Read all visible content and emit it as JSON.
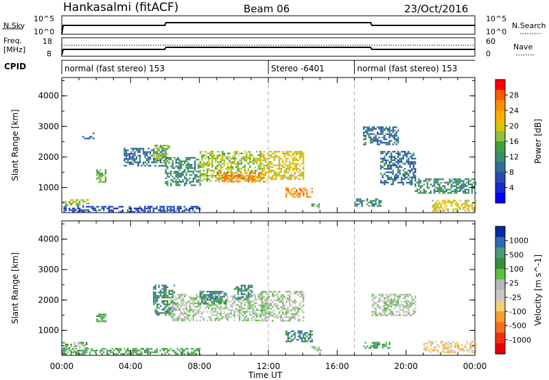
{
  "header": {
    "station": "Hankasalmi (fitACF)",
    "beam": "Beam 06",
    "date": "23/Oct/2016"
  },
  "top_panels": {
    "nsky_label": "N.Sky",
    "nsky_ticks": [
      "10^5",
      "10^0"
    ],
    "nsearch_label": "N.Search",
    "nsearch_ticks": [
      "10^5",
      "10^0"
    ],
    "freq_label_1": "Freq.",
    "freq_label_2": "[MHz]",
    "freq_ticks": [
      "18",
      "8"
    ],
    "nave_label": "Nave",
    "nave_ticks": [
      "60",
      "0"
    ],
    "cpid_label": "CPID",
    "cpid_segments": [
      {
        "label": "normal (fast stereo) 153",
        "start_hour": 0
      },
      {
        "label": "Stereo -6401",
        "start_hour": 12
      },
      {
        "label": "normal (fast stereo) 153",
        "start_hour": 17
      }
    ]
  },
  "x_axis": {
    "label": "Time UT",
    "ticks": [
      "00:00",
      "04:00",
      "08:00",
      "12:00",
      "16:00",
      "20:00",
      "00:00"
    ],
    "range_hours": [
      0,
      24
    ]
  },
  "chart_data": [
    {
      "type": "heatmap",
      "title": "",
      "xlabel": "Time UT",
      "ylabel": "Slant Range [km]",
      "ylim": [
        180,
        4600
      ],
      "yticks": [
        "1000",
        "2000",
        "3000",
        "4000"
      ],
      "colorbar_label": "Power [dB]",
      "colorbar_ticks": [
        "28",
        "24",
        "20",
        "16",
        "12",
        "8",
        "4"
      ],
      "colorbar_colors": [
        "#ff0000",
        "#ff5a00",
        "#ff8c00",
        "#ffb000",
        "#d8c800",
        "#90c040",
        "#40a040",
        "#3c8c64",
        "#2f6e9a",
        "#2a4cb0",
        "#1a28d0",
        "#0000ff"
      ],
      "regions": [
        {
          "x": [
            0.0,
            1.5
          ],
          "y": [
            450,
            620
          ],
          "level": 6
        },
        {
          "x": [
            0.0,
            8.0
          ],
          "y": [
            200,
            400
          ],
          "level": 2
        },
        {
          "x": [
            1.2,
            1.8
          ],
          "y": [
            2600,
            2800
          ],
          "level": 3
        },
        {
          "x": [
            2.0,
            2.5
          ],
          "y": [
            1200,
            1600
          ],
          "level": 5
        },
        {
          "x": [
            3.6,
            6.0
          ],
          "y": [
            1700,
            2300
          ],
          "level": 3
        },
        {
          "x": [
            5.3,
            6.2
          ],
          "y": [
            1800,
            2400
          ],
          "level": 6
        },
        {
          "x": [
            6.0,
            8.0
          ],
          "y": [
            1100,
            2000
          ],
          "level": 4
        },
        {
          "x": [
            8.0,
            11.5
          ],
          "y": [
            1200,
            2200
          ],
          "level": 6
        },
        {
          "x": [
            9.0,
            11.8
          ],
          "y": [
            1200,
            1500
          ],
          "level": 9
        },
        {
          "x": [
            11.5,
            14.0
          ],
          "y": [
            1300,
            2200
          ],
          "level": 7
        },
        {
          "x": [
            13.0,
            14.5
          ],
          "y": [
            700,
            1000
          ],
          "level": 9
        },
        {
          "x": [
            14.5,
            15.0
          ],
          "y": [
            350,
            480
          ],
          "level": 5
        },
        {
          "x": [
            17.0,
            18.5
          ],
          "y": [
            400,
            650
          ],
          "level": 4
        },
        {
          "x": [
            17.5,
            19.5
          ],
          "y": [
            2400,
            3000
          ],
          "level": 3
        },
        {
          "x": [
            18.5,
            20.5
          ],
          "y": [
            1100,
            2200
          ],
          "level": 3
        },
        {
          "x": [
            20.5,
            24.0
          ],
          "y": [
            800,
            1300
          ],
          "level": 4
        },
        {
          "x": [
            21.5,
            24.0
          ],
          "y": [
            250,
            600
          ],
          "level": 7
        }
      ]
    },
    {
      "type": "heatmap",
      "title": "",
      "xlabel": "Time UT",
      "ylabel": "Slant Range [km]",
      "ylim": [
        180,
        4600
      ],
      "yticks": [
        "1000",
        "2000",
        "3000",
        "4000"
      ],
      "colorbar_label": "Velocity [m s^-1]",
      "colorbar_ticks": [
        "1000",
        "500",
        "100",
        "25",
        "-25",
        "-100",
        "-500",
        "-1000"
      ],
      "colorbar_colors": [
        "#0a2aa0",
        "#2e6ab8",
        "#4e9a78",
        "#3c8c3c",
        "#5cc040",
        "#b8b8b8",
        "#c8c8c8",
        "#f0d278",
        "#f5a030",
        "#f07020",
        "#f03010",
        "#e80000"
      ],
      "regions": [
        {
          "x": [
            0.0,
            1.5
          ],
          "y": [
            450,
            620
          ],
          "level": 7
        },
        {
          "x": [
            0.0,
            8.0
          ],
          "y": [
            200,
            420
          ],
          "level": 8
        },
        {
          "x": [
            2.0,
            2.5
          ],
          "y": [
            1300,
            1550
          ],
          "level": 8
        },
        {
          "x": [
            5.3,
            6.5
          ],
          "y": [
            1500,
            2500
          ],
          "level": 9
        },
        {
          "x": [
            6.3,
            12.0
          ],
          "y": [
            1300,
            2200
          ],
          "level": 6
        },
        {
          "x": [
            8.0,
            9.5
          ],
          "y": [
            1900,
            2300
          ],
          "level": 9
        },
        {
          "x": [
            10.0,
            11.0
          ],
          "y": [
            2000,
            2500
          ],
          "level": 9
        },
        {
          "x": [
            11.5,
            14.0
          ],
          "y": [
            1300,
            2300
          ],
          "level": 6
        },
        {
          "x": [
            13.0,
            14.5
          ],
          "y": [
            650,
            1000
          ],
          "level": 9
        },
        {
          "x": [
            14.5,
            15.0
          ],
          "y": [
            350,
            480
          ],
          "level": 6
        },
        {
          "x": [
            17.5,
            19.0
          ],
          "y": [
            420,
            620
          ],
          "level": 8
        },
        {
          "x": [
            18.0,
            20.5
          ],
          "y": [
            1500,
            2200
          ],
          "level": 6
        },
        {
          "x": [
            21.0,
            24.0
          ],
          "y": [
            300,
            650
          ],
          "level": 4
        }
      ]
    }
  ]
}
